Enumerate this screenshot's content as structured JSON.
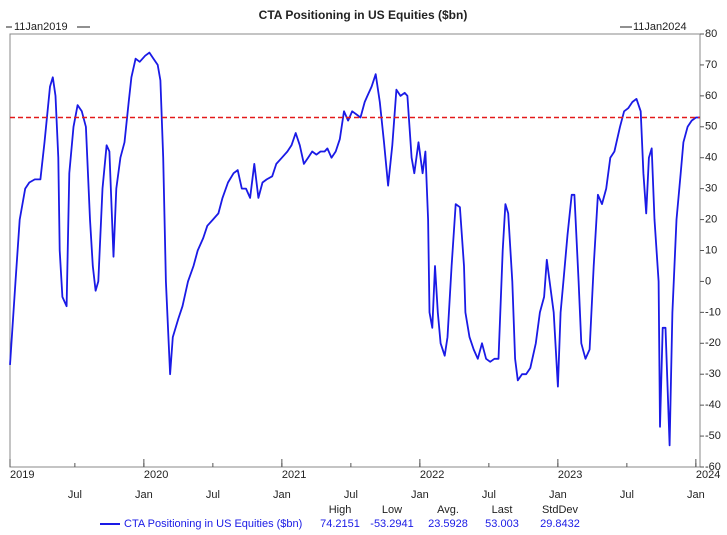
{
  "chart_data": {
    "type": "line",
    "title": "CTA Positioning in US Equities ($bn)",
    "start_label": "11Jan2019",
    "end_label": "11Jan2024",
    "x": [
      2019.03,
      2019.07,
      2019.1,
      2019.14,
      2019.17,
      2019.21,
      2019.25,
      2019.28,
      2019.32,
      2019.34,
      2019.36,
      2019.38,
      2019.39,
      2019.41,
      2019.44,
      2019.46,
      2019.49,
      2019.52,
      2019.55,
      2019.58,
      2019.61,
      2019.63,
      2019.65,
      2019.67,
      2019.7,
      2019.73,
      2019.75,
      2019.78,
      2019.8,
      2019.83,
      2019.86,
      2019.89,
      2019.91,
      2019.94,
      2019.97,
      2020.01,
      2020.04,
      2020.07,
      2020.1,
      2020.12,
      2020.14,
      2020.16,
      2020.18,
      2020.19,
      2020.21,
      2020.25,
      2020.28,
      2020.32,
      2020.36,
      2020.39,
      2020.43,
      2020.46,
      2020.5,
      2020.54,
      2020.57,
      2020.61,
      2020.65,
      2020.68,
      2020.71,
      2020.74,
      2020.77,
      2020.8,
      2020.83,
      2020.86,
      2020.89,
      2020.93,
      2020.96,
      2021.0,
      2021.04,
      2021.07,
      2021.1,
      2021.13,
      2021.16,
      2021.19,
      2021.22,
      2021.25,
      2021.28,
      2021.31,
      2021.33,
      2021.36,
      2021.39,
      2021.42,
      2021.45,
      2021.48,
      2021.51,
      2021.54,
      2021.57,
      2021.6,
      2021.62,
      2021.65,
      2021.68,
      2021.71,
      2021.74,
      2021.77,
      2021.8,
      2021.83,
      2021.86,
      2021.89,
      2021.91,
      2021.94,
      2021.96,
      2021.99,
      2022.02,
      2022.04,
      2022.06,
      2022.07,
      2022.09,
      2022.11,
      2022.13,
      2022.15,
      2022.18,
      2022.2,
      2022.23,
      2022.26,
      2022.29,
      2022.32,
      2022.33,
      2022.36,
      2022.39,
      2022.42,
      2022.45,
      2022.48,
      2022.51,
      2022.54,
      2022.57,
      2022.6,
      2022.62,
      2022.64,
      2022.67,
      2022.69,
      2022.71,
      2022.74,
      2022.77,
      2022.8,
      2022.84,
      2022.87,
      2022.9,
      2022.92,
      2022.94,
      2022.97,
      2023.0,
      2023.02,
      2023.04,
      2023.07,
      2023.1,
      2023.12,
      2023.15,
      2023.17,
      2023.2,
      2023.23,
      2023.26,
      2023.29,
      2023.32,
      2023.35,
      2023.38,
      2023.41,
      2023.45,
      2023.48,
      2023.51,
      2023.54,
      2023.57,
      2023.6,
      2023.62,
      2023.64,
      2023.66,
      2023.68,
      2023.7,
      2023.73,
      2023.74,
      2023.76,
      2023.78,
      2023.81,
      2023.83,
      2023.86,
      2023.89,
      2023.91,
      2023.94,
      2023.97,
      2024.0,
      2024.03
    ],
    "series": [
      {
        "name": "CTA Positioning in US Equities ($bn)",
        "color": "#1a1ae6",
        "values": [
          -27,
          0,
          20,
          30,
          32,
          33,
          33,
          45,
          63,
          66,
          60,
          40,
          10,
          -5,
          -8,
          35,
          50,
          57,
          55,
          50,
          20,
          5,
          -3,
          0,
          30,
          44,
          42,
          8,
          30,
          40,
          45,
          58,
          66,
          72,
          71,
          73,
          74,
          72,
          70,
          65,
          40,
          0,
          -20,
          -30,
          -18,
          -12,
          -8,
          0,
          5,
          10,
          14,
          18,
          20,
          22,
          27,
          32,
          35,
          36,
          30,
          30,
          27,
          38,
          27,
          32,
          33,
          34,
          38,
          40,
          42,
          44,
          48,
          44,
          38,
          40,
          42,
          41,
          42,
          42,
          43,
          40,
          42,
          46,
          55,
          52,
          55,
          54,
          53,
          58,
          60,
          63,
          67,
          58,
          45,
          31,
          44,
          62,
          60,
          61,
          60,
          40,
          35,
          45,
          35,
          42,
          20,
          -10,
          -15,
          5,
          -10,
          -20,
          -24,
          -18,
          5,
          25,
          24,
          5,
          -10,
          -18,
          -22,
          -25,
          -20,
          -25,
          -26,
          -25,
          -25,
          10,
          25,
          22,
          0,
          -25,
          -32,
          -30,
          -30,
          -28,
          -20,
          -10,
          -5,
          7,
          0,
          -10,
          -34,
          -10,
          0,
          15,
          28,
          28,
          0,
          -20,
          -25,
          -22,
          5,
          28,
          25,
          30,
          40,
          42,
          50,
          55,
          56,
          58,
          59,
          55,
          35,
          22,
          40,
          43,
          20,
          0,
          -47,
          -15,
          -15,
          -53,
          -10,
          20,
          35,
          45,
          50,
          52,
          53,
          53
        ]
      }
    ],
    "xlim": [
      2019.03,
      2024.03
    ],
    "xticks": [
      {
        "value": 2019.5,
        "label": "Jul"
      },
      {
        "value": 2020,
        "label": "Jan"
      },
      {
        "value": 2020.5,
        "label": "Jul"
      },
      {
        "value": 2021,
        "label": "Jan"
      },
      {
        "value": 2021.5,
        "label": "Jul"
      },
      {
        "value": 2022,
        "label": "Jan"
      },
      {
        "value": 2022.5,
        "label": "Jul"
      },
      {
        "value": 2023,
        "label": "Jan"
      },
      {
        "value": 2023.5,
        "label": "Jul"
      },
      {
        "value": 2024,
        "label": "Jan"
      }
    ],
    "year_ticks": [
      2019,
      2020,
      2021,
      2022,
      2023,
      2024
    ],
    "ylim": [
      -60,
      80
    ],
    "yticks": [
      -60,
      -50,
      -40,
      -30,
      -20,
      -10,
      0,
      10,
      20,
      30,
      40,
      50,
      60,
      70,
      80
    ],
    "reference_line": {
      "value": 53.003,
      "color": "#e31a1a"
    },
    "stats": [
      {
        "label": "High",
        "value": 74.2151
      },
      {
        "label": "Low",
        "value": -53.2941
      },
      {
        "label": "Avg.",
        "value": 23.5928
      },
      {
        "label": "Last",
        "value": 53.003
      },
      {
        "label": "StdDev",
        "value": 29.8432
      }
    ]
  }
}
